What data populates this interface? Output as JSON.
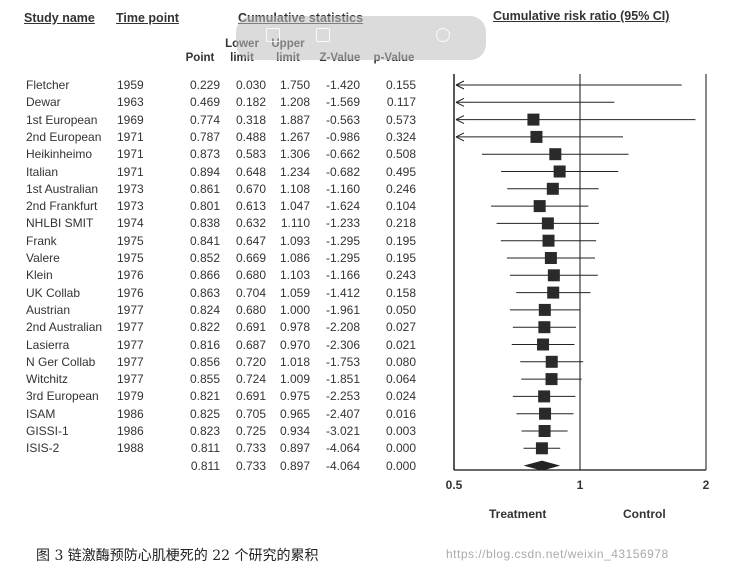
{
  "headers": {
    "study_name": "Study name",
    "time_point": "Time point",
    "cumulative_statistics": "Cumulative statistics",
    "cumulative_risk_ratio": "Cumulative risk ratio (95% CI)",
    "point": "Point",
    "lower_limit": "Lower limit",
    "upper_limit": "Upper limit",
    "z_value": "Z-Value",
    "p_value": "p-Value"
  },
  "chart_data": {
    "type": "forest",
    "scale": "log",
    "xlim": [
      0.5,
      2
    ],
    "ticks": [
      "0.5",
      "1",
      "2"
    ],
    "tick_values": [
      0.5,
      1,
      2
    ],
    "xlabel_left": "Treatment",
    "xlabel_right": "Control",
    "rows": [
      {
        "study": "Fletcher",
        "year": "1959",
        "point": "0.229",
        "lower": "0.030",
        "upper": "1.750",
        "z": "-1.420",
        "p": "0.155"
      },
      {
        "study": "Dewar",
        "year": "1963",
        "point": "0.469",
        "lower": "0.182",
        "upper": "1.208",
        "z": "-1.569",
        "p": "0.117"
      },
      {
        "study": "1st European",
        "year": "1969",
        "point": "0.774",
        "lower": "0.318",
        "upper": "1.887",
        "z": "-0.563",
        "p": "0.573"
      },
      {
        "study": "2nd European",
        "year": "1971",
        "point": "0.787",
        "lower": "0.488",
        "upper": "1.267",
        "z": "-0.986",
        "p": "0.324"
      },
      {
        "study": "Heikinheimo",
        "year": "1971",
        "point": "0.873",
        "lower": "0.583",
        "upper": "1.306",
        "z": "-0.662",
        "p": "0.508"
      },
      {
        "study": "Italian",
        "year": "1971",
        "point": "0.894",
        "lower": "0.648",
        "upper": "1.234",
        "z": "-0.682",
        "p": "0.495"
      },
      {
        "study": "1st Australian",
        "year": "1973",
        "point": "0.861",
        "lower": "0.670",
        "upper": "1.108",
        "z": "-1.160",
        "p": "0.246"
      },
      {
        "study": "2nd Frankfurt",
        "year": "1973",
        "point": "0.801",
        "lower": "0.613",
        "upper": "1.047",
        "z": "-1.624",
        "p": "0.104"
      },
      {
        "study": "NHLBI SMIT",
        "year": "1974",
        "point": "0.838",
        "lower": "0.632",
        "upper": "1.110",
        "z": "-1.233",
        "p": "0.218"
      },
      {
        "study": "Frank",
        "year": "1975",
        "point": "0.841",
        "lower": "0.647",
        "upper": "1.093",
        "z": "-1.295",
        "p": "0.195"
      },
      {
        "study": "Valere",
        "year": "1975",
        "point": "0.852",
        "lower": "0.669",
        "upper": "1.086",
        "z": "-1.295",
        "p": "0.195"
      },
      {
        "study": "Klein",
        "year": "1976",
        "point": "0.866",
        "lower": "0.680",
        "upper": "1.103",
        "z": "-1.166",
        "p": "0.243"
      },
      {
        "study": "UK Collab",
        "year": "1976",
        "point": "0.863",
        "lower": "0.704",
        "upper": "1.059",
        "z": "-1.412",
        "p": "0.158"
      },
      {
        "study": "Austrian",
        "year": "1977",
        "point": "0.824",
        "lower": "0.680",
        "upper": "1.000",
        "z": "-1.961",
        "p": "0.050"
      },
      {
        "study": "2nd Australian",
        "year": "1977",
        "point": "0.822",
        "lower": "0.691",
        "upper": "0.978",
        "z": "-2.208",
        "p": "0.027"
      },
      {
        "study": "Lasierra",
        "year": "1977",
        "point": "0.816",
        "lower": "0.687",
        "upper": "0.970",
        "z": "-2.306",
        "p": "0.021"
      },
      {
        "study": "N Ger Collab",
        "year": "1977",
        "point": "0.856",
        "lower": "0.720",
        "upper": "1.018",
        "z": "-1.753",
        "p": "0.080"
      },
      {
        "study": "Witchitz",
        "year": "1977",
        "point": "0.855",
        "lower": "0.724",
        "upper": "1.009",
        "z": "-1.851",
        "p": "0.064"
      },
      {
        "study": "3rd European",
        "year": "1979",
        "point": "0.821",
        "lower": "0.691",
        "upper": "0.975",
        "z": "-2.253",
        "p": "0.024"
      },
      {
        "study": "ISAM",
        "year": "1986",
        "point": "0.825",
        "lower": "0.705",
        "upper": "0.965",
        "z": "-2.407",
        "p": "0.016"
      },
      {
        "study": "GISSI-1",
        "year": "1986",
        "point": "0.823",
        "lower": "0.725",
        "point_note": "",
        "upper": "0.934",
        "z": "-3.021",
        "p": "0.003"
      },
      {
        "study": "ISIS-2",
        "year": "1988",
        "point": "0.811",
        "lower": "0.733",
        "upper": "0.897",
        "z": "-4.064",
        "p": "0.000"
      }
    ],
    "summary": {
      "point": "0.811",
      "lower": "0.733",
      "upper": "0.897",
      "z": "-4.064",
      "p": "0.000"
    }
  },
  "caption": {
    "text": "图 3   链激酶预防心肌梗死的 22 个研究的累积",
    "tail": "https://blog.csdn.net/weixin_43156978"
  }
}
